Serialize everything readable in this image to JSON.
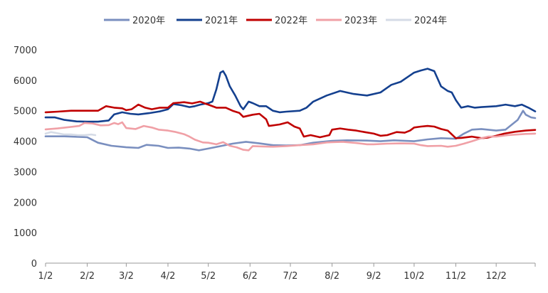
{
  "chart_data": {
    "type": "line",
    "title": "",
    "xlabel": "",
    "ylabel": "",
    "ylim": [
      0,
      7000
    ],
    "yticks": [
      0,
      1000,
      2000,
      3000,
      4000,
      5000,
      6000,
      7000
    ],
    "xlim": [
      1,
      365
    ],
    "xticks": [
      {
        "label": "1/2",
        "x": 1
      },
      {
        "label": "2/2",
        "x": 32
      },
      {
        "label": "3/2",
        "x": 61
      },
      {
        "label": "4/2",
        "x": 92
      },
      {
        "label": "5/2",
        "x": 122
      },
      {
        "label": "6/2",
        "x": 153
      },
      {
        "label": "7/2",
        "x": 183
      },
      {
        "label": "8/2",
        "x": 214
      },
      {
        "label": "9/2",
        "x": 245
      },
      {
        "label": "10/2",
        "x": 275
      },
      {
        "label": "11/2",
        "x": 306
      },
      {
        "label": "12/2",
        "x": 336
      }
    ],
    "grid": false,
    "legend": "top",
    "series": [
      {
        "name": "2020年",
        "color": "#7a8fbf",
        "points": [
          [
            1,
            4160
          ],
          [
            15,
            4160
          ],
          [
            32,
            4130
          ],
          [
            40,
            3950
          ],
          [
            50,
            3850
          ],
          [
            61,
            3800
          ],
          [
            70,
            3780
          ],
          [
            76,
            3880
          ],
          [
            85,
            3850
          ],
          [
            92,
            3780
          ],
          [
            100,
            3790
          ],
          [
            108,
            3760
          ],
          [
            115,
            3700
          ],
          [
            122,
            3760
          ],
          [
            130,
            3830
          ],
          [
            140,
            3920
          ],
          [
            150,
            3980
          ],
          [
            160,
            3930
          ],
          [
            170,
            3870
          ],
          [
            180,
            3860
          ],
          [
            190,
            3870
          ],
          [
            200,
            3950
          ],
          [
            214,
            4010
          ],
          [
            225,
            4030
          ],
          [
            240,
            4020
          ],
          [
            250,
            4000
          ],
          [
            260,
            4030
          ],
          [
            275,
            4000
          ],
          [
            285,
            4060
          ],
          [
            295,
            4100
          ],
          [
            306,
            4080
          ],
          [
            312,
            4250
          ],
          [
            318,
            4380
          ],
          [
            325,
            4400
          ],
          [
            336,
            4350
          ],
          [
            343,
            4380
          ],
          [
            348,
            4560
          ],
          [
            352,
            4700
          ],
          [
            356,
            5000
          ],
          [
            358,
            4870
          ],
          [
            362,
            4780
          ],
          [
            365,
            4760
          ]
        ]
      },
      {
        "name": "2021年",
        "color": "#14408f",
        "points": [
          [
            1,
            4780
          ],
          [
            8,
            4780
          ],
          [
            15,
            4700
          ],
          [
            24,
            4650
          ],
          [
            32,
            4640
          ],
          [
            40,
            4640
          ],
          [
            48,
            4680
          ],
          [
            52,
            4880
          ],
          [
            58,
            4950
          ],
          [
            64,
            4900
          ],
          [
            70,
            4880
          ],
          [
            78,
            4920
          ],
          [
            86,
            4980
          ],
          [
            92,
            5050
          ],
          [
            96,
            5220
          ],
          [
            102,
            5180
          ],
          [
            108,
            5120
          ],
          [
            112,
            5150
          ],
          [
            116,
            5200
          ],
          [
            122,
            5250
          ],
          [
            125,
            5300
          ],
          [
            128,
            5700
          ],
          [
            131,
            6250
          ],
          [
            133,
            6300
          ],
          [
            135,
            6150
          ],
          [
            138,
            5800
          ],
          [
            142,
            5500
          ],
          [
            146,
            5150
          ],
          [
            148,
            5050
          ],
          [
            152,
            5300
          ],
          [
            155,
            5250
          ],
          [
            160,
            5150
          ],
          [
            165,
            5150
          ],
          [
            170,
            5000
          ],
          [
            175,
            4950
          ],
          [
            180,
            4970
          ],
          [
            190,
            5000
          ],
          [
            195,
            5100
          ],
          [
            200,
            5300
          ],
          [
            210,
            5500
          ],
          [
            220,
            5650
          ],
          [
            230,
            5550
          ],
          [
            240,
            5500
          ],
          [
            250,
            5600
          ],
          [
            258,
            5850
          ],
          [
            265,
            5950
          ],
          [
            270,
            6100
          ],
          [
            275,
            6250
          ],
          [
            280,
            6320
          ],
          [
            285,
            6380
          ],
          [
            290,
            6300
          ],
          [
            295,
            5800
          ],
          [
            300,
            5650
          ],
          [
            303,
            5600
          ],
          [
            306,
            5350
          ],
          [
            310,
            5100
          ],
          [
            315,
            5150
          ],
          [
            320,
            5100
          ],
          [
            325,
            5120
          ],
          [
            336,
            5150
          ],
          [
            343,
            5200
          ],
          [
            350,
            5150
          ],
          [
            355,
            5200
          ],
          [
            360,
            5100
          ],
          [
            365,
            4980
          ]
        ]
      },
      {
        "name": "2022年",
        "color": "#c00000",
        "points": [
          [
            1,
            4950
          ],
          [
            10,
            4970
          ],
          [
            20,
            5000
          ],
          [
            32,
            5000
          ],
          [
            40,
            5000
          ],
          [
            46,
            5150
          ],
          [
            52,
            5100
          ],
          [
            58,
            5080
          ],
          [
            61,
            5020
          ],
          [
            65,
            5050
          ],
          [
            70,
            5200
          ],
          [
            75,
            5100
          ],
          [
            80,
            5050
          ],
          [
            86,
            5100
          ],
          [
            92,
            5100
          ],
          [
            96,
            5250
          ],
          [
            104,
            5280
          ],
          [
            110,
            5240
          ],
          [
            116,
            5300
          ],
          [
            120,
            5230
          ],
          [
            122,
            5200
          ],
          [
            128,
            5100
          ],
          [
            135,
            5100
          ],
          [
            140,
            5000
          ],
          [
            145,
            4930
          ],
          [
            148,
            4800
          ],
          [
            155,
            4870
          ],
          [
            160,
            4900
          ],
          [
            165,
            4720
          ],
          [
            167,
            4500
          ],
          [
            175,
            4550
          ],
          [
            181,
            4620
          ],
          [
            186,
            4480
          ],
          [
            190,
            4420
          ],
          [
            193,
            4150
          ],
          [
            198,
            4200
          ],
          [
            205,
            4130
          ],
          [
            212,
            4200
          ],
          [
            214,
            4380
          ],
          [
            220,
            4420
          ],
          [
            226,
            4380
          ],
          [
            232,
            4350
          ],
          [
            238,
            4300
          ],
          [
            245,
            4250
          ],
          [
            250,
            4180
          ],
          [
            255,
            4200
          ],
          [
            262,
            4300
          ],
          [
            268,
            4280
          ],
          [
            272,
            4350
          ],
          [
            275,
            4450
          ],
          [
            280,
            4480
          ],
          [
            285,
            4500
          ],
          [
            290,
            4480
          ],
          [
            295,
            4400
          ],
          [
            300,
            4350
          ],
          [
            306,
            4100
          ],
          [
            310,
            4110
          ],
          [
            318,
            4150
          ],
          [
            325,
            4100
          ],
          [
            330,
            4120
          ],
          [
            336,
            4180
          ],
          [
            342,
            4250
          ],
          [
            350,
            4310
          ],
          [
            358,
            4350
          ],
          [
            365,
            4370
          ]
        ]
      },
      {
        "name": "2023年",
        "color": "#f0a0a6",
        "points": [
          [
            1,
            4390
          ],
          [
            10,
            4420
          ],
          [
            20,
            4470
          ],
          [
            26,
            4500
          ],
          [
            30,
            4600
          ],
          [
            36,
            4580
          ],
          [
            42,
            4520
          ],
          [
            48,
            4530
          ],
          [
            52,
            4600
          ],
          [
            55,
            4560
          ],
          [
            58,
            4620
          ],
          [
            61,
            4430
          ],
          [
            68,
            4400
          ],
          [
            74,
            4500
          ],
          [
            80,
            4450
          ],
          [
            85,
            4380
          ],
          [
            92,
            4350
          ],
          [
            98,
            4300
          ],
          [
            104,
            4230
          ],
          [
            108,
            4150
          ],
          [
            112,
            4050
          ],
          [
            118,
            3960
          ],
          [
            122,
            3950
          ],
          [
            128,
            3900
          ],
          [
            133,
            3970
          ],
          [
            138,
            3850
          ],
          [
            143,
            3800
          ],
          [
            148,
            3720
          ],
          [
            152,
            3700
          ],
          [
            155,
            3840
          ],
          [
            162,
            3830
          ],
          [
            170,
            3820
          ],
          [
            180,
            3840
          ],
          [
            190,
            3870
          ],
          [
            200,
            3900
          ],
          [
            210,
            3960
          ],
          [
            214,
            3970
          ],
          [
            222,
            3980
          ],
          [
            232,
            3940
          ],
          [
            240,
            3900
          ],
          [
            245,
            3900
          ],
          [
            255,
            3920
          ],
          [
            265,
            3930
          ],
          [
            275,
            3920
          ],
          [
            280,
            3870
          ],
          [
            285,
            3840
          ],
          [
            295,
            3850
          ],
          [
            300,
            3820
          ],
          [
            306,
            3850
          ],
          [
            312,
            3920
          ],
          [
            318,
            4000
          ],
          [
            325,
            4100
          ],
          [
            330,
            4150
          ],
          [
            336,
            4150
          ],
          [
            345,
            4200
          ],
          [
            352,
            4220
          ],
          [
            358,
            4240
          ],
          [
            365,
            4250
          ]
        ]
      },
      {
        "name": "2024年",
        "color": "#d5dbe6",
        "points": [
          [
            1,
            4250
          ],
          [
            5,
            4300
          ],
          [
            10,
            4260
          ],
          [
            15,
            4220
          ],
          [
            20,
            4220
          ],
          [
            25,
            4200
          ],
          [
            30,
            4200
          ],
          [
            35,
            4220
          ],
          [
            38,
            4200
          ]
        ]
      }
    ]
  }
}
